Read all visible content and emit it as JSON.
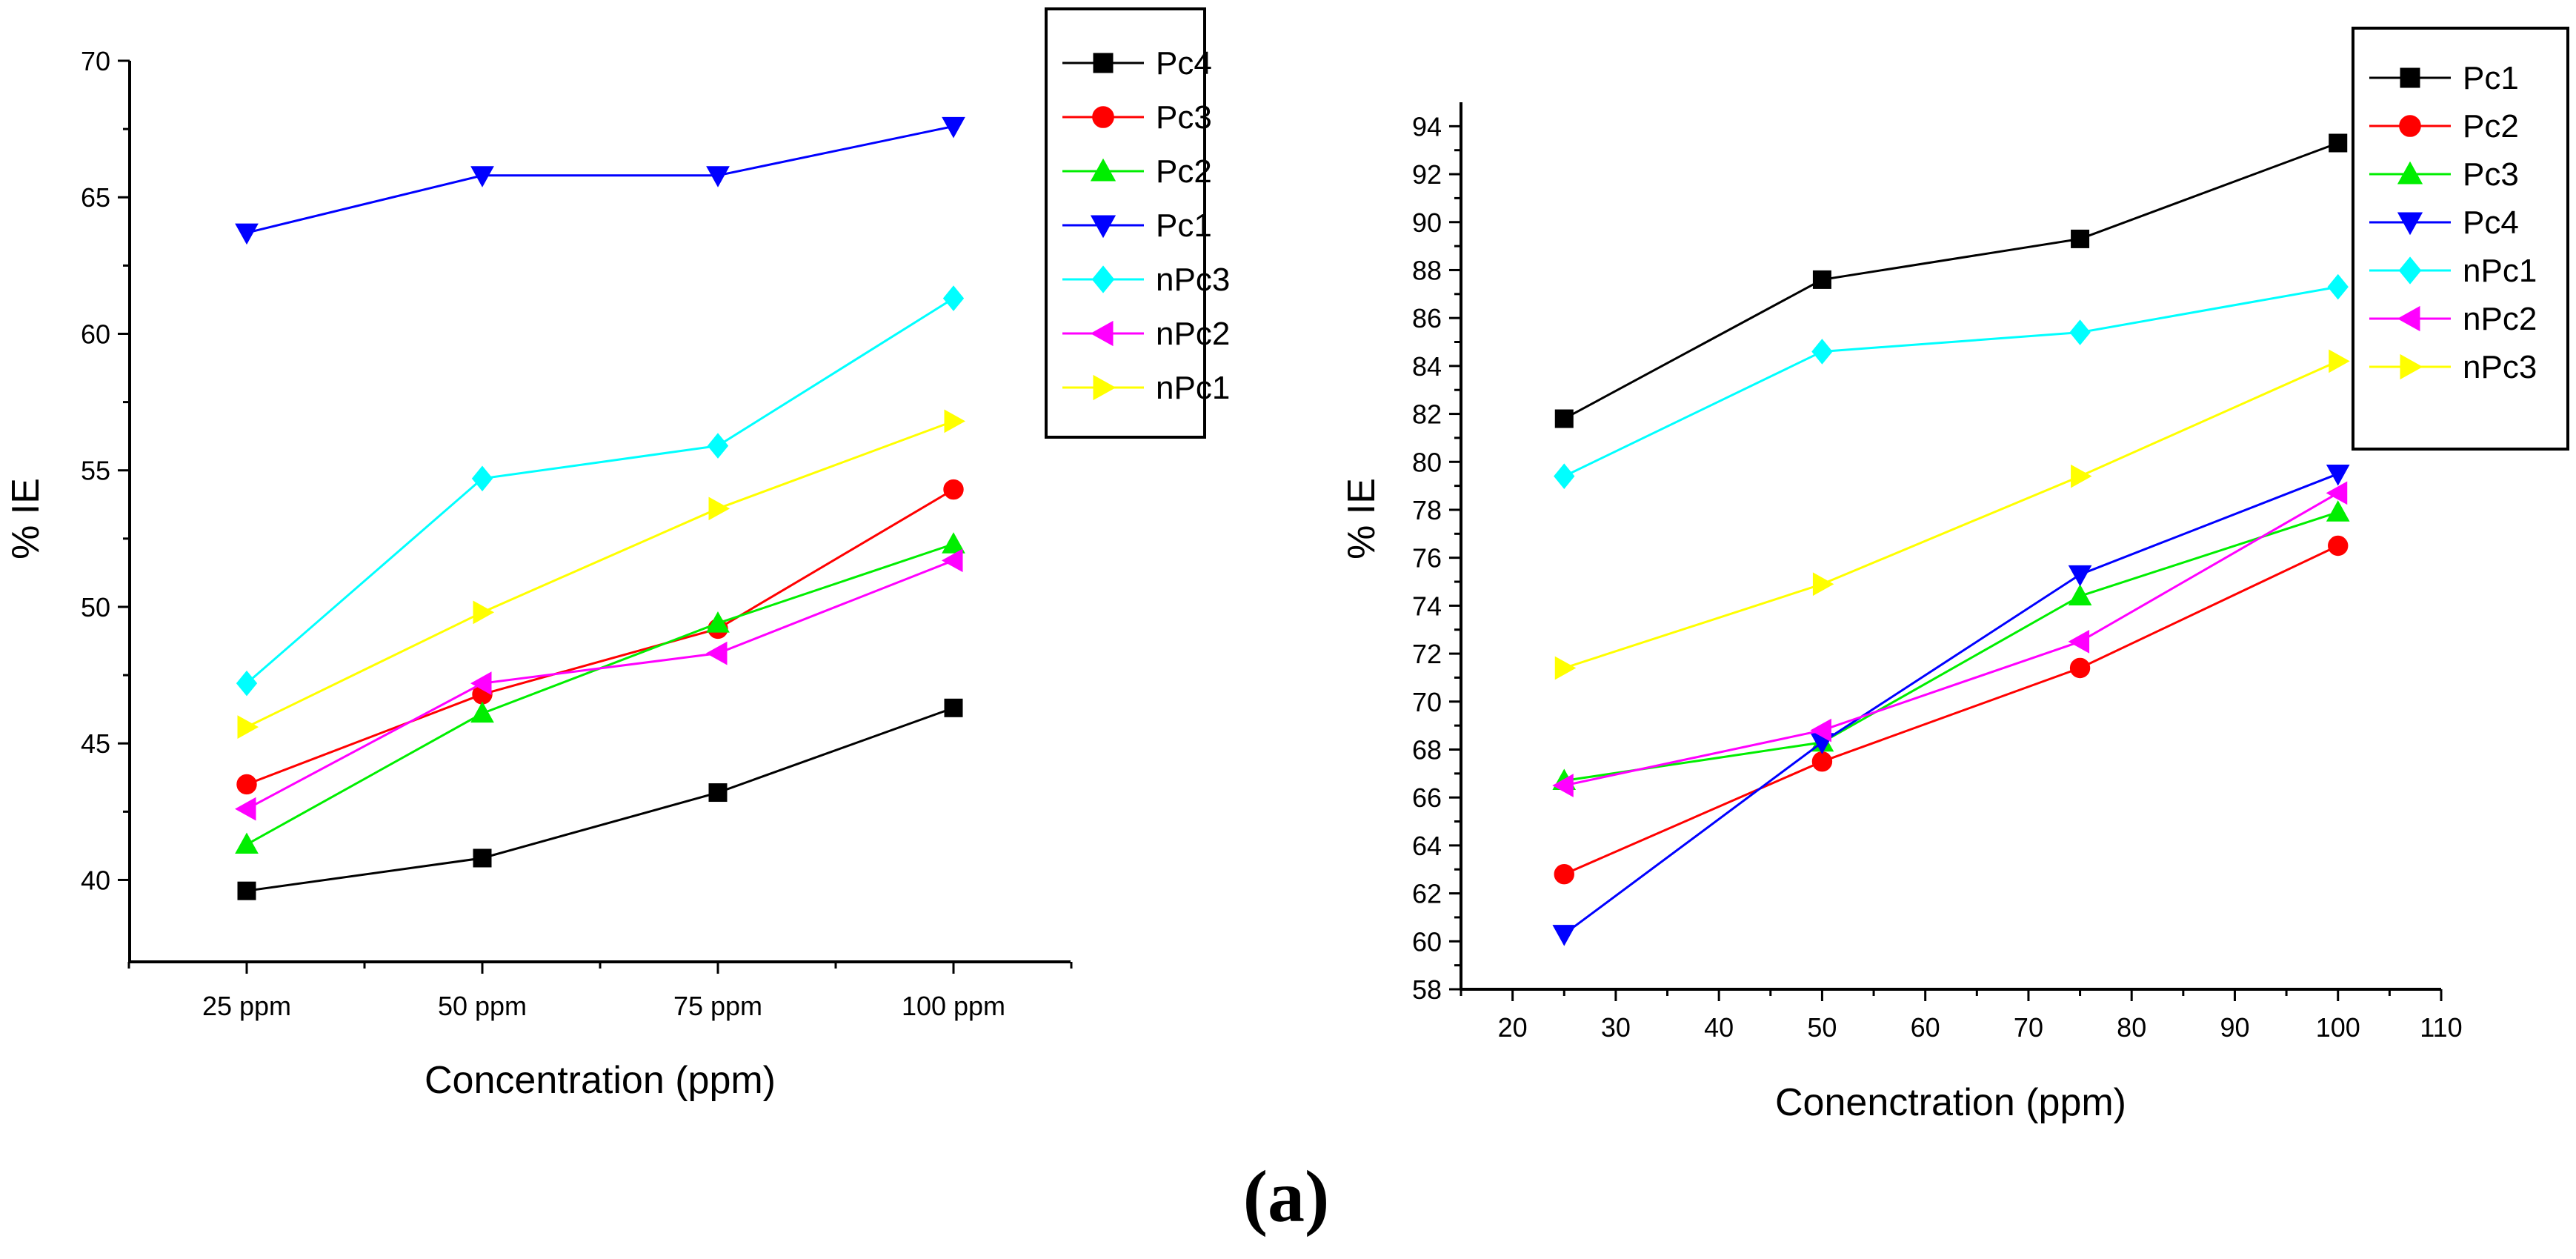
{
  "caption": "(a)",
  "chart_data": [
    {
      "type": "line",
      "categories": [
        "25 ppm",
        "50 ppm",
        "75 ppm",
        "100 ppm"
      ],
      "xlabel": "Concentration (ppm)",
      "ylabel": "% IE",
      "ylim": [
        37,
        70
      ],
      "yticks": [
        40,
        45,
        50,
        55,
        60,
        65,
        70
      ],
      "legend_position": "top-right",
      "series": [
        {
          "name": "Pc4",
          "marker": "square",
          "color": "#000000",
          "values": [
            39.6,
            40.8,
            43.2,
            46.3
          ]
        },
        {
          "name": "Pc3",
          "marker": "circle",
          "color": "#ff0000",
          "values": [
            43.5,
            46.8,
            49.2,
            54.3
          ]
        },
        {
          "name": "Pc2",
          "marker": "triangle-up",
          "color": "#00ee00",
          "values": [
            41.3,
            46.1,
            49.4,
            52.3
          ]
        },
        {
          "name": "Pc1",
          "marker": "triangle-down",
          "color": "#0000ff",
          "values": [
            63.7,
            65.8,
            65.8,
            67.6
          ]
        },
        {
          "name": "nPc3",
          "marker": "diamond",
          "color": "#00ffff",
          "values": [
            47.2,
            54.7,
            55.9,
            61.3
          ]
        },
        {
          "name": "nPc2",
          "marker": "triangle-left",
          "color": "#ff00ff",
          "values": [
            42.6,
            47.2,
            48.3,
            51.7
          ]
        },
        {
          "name": "nPc1",
          "marker": "triangle-right",
          "color": "#ffff00",
          "values": [
            45.6,
            49.8,
            53.6,
            56.8
          ]
        }
      ]
    },
    {
      "type": "line",
      "x": [
        25,
        50,
        75,
        100
      ],
      "xlabel": "Conenctration (ppm)",
      "ylabel": "% IE",
      "xlim": [
        15,
        110
      ],
      "xticks": [
        20,
        30,
        40,
        50,
        60,
        70,
        80,
        90,
        100,
        110
      ],
      "ylim": [
        58,
        95
      ],
      "yticks": [
        58,
        60,
        62,
        64,
        66,
        68,
        70,
        72,
        74,
        76,
        78,
        80,
        82,
        84,
        86,
        88,
        90,
        92,
        94
      ],
      "legend_position": "top-right",
      "series": [
        {
          "name": "Pc1",
          "marker": "square",
          "color": "#000000",
          "values": [
            81.8,
            87.6,
            89.3,
            93.3
          ]
        },
        {
          "name": "Pc2",
          "marker": "circle",
          "color": "#ff0000",
          "values": [
            62.8,
            67.5,
            71.4,
            76.5
          ]
        },
        {
          "name": "Pc3",
          "marker": "triangle-up",
          "color": "#00ee00",
          "values": [
            66.7,
            68.3,
            74.4,
            77.9
          ]
        },
        {
          "name": "Pc4",
          "marker": "triangle-down",
          "color": "#0000ff",
          "values": [
            60.3,
            68.3,
            75.3,
            79.5
          ]
        },
        {
          "name": "nPc1",
          "marker": "diamond",
          "color": "#00ffff",
          "values": [
            79.4,
            84.6,
            85.4,
            87.3
          ]
        },
        {
          "name": "nPc2",
          "marker": "triangle-left",
          "color": "#ff00ff",
          "values": [
            66.5,
            68.8,
            72.5,
            78.7
          ]
        },
        {
          "name": "nPc3",
          "marker": "triangle-right",
          "color": "#ffff00",
          "values": [
            71.4,
            74.9,
            79.4,
            84.2
          ]
        }
      ]
    }
  ]
}
